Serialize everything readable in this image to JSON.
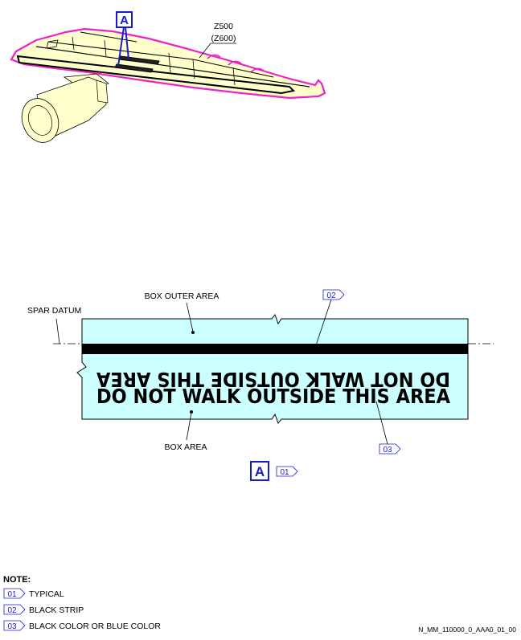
{
  "wing": {
    "zone_label": "Z500",
    "zone_sublabel": "(Z600)",
    "detail_callout": "A"
  },
  "detail": {
    "outer_area_label": "BOX OUTER AREA",
    "spar_datum_label": "SPAR DATUM",
    "box_area_label": "BOX AREA",
    "sign_text_mirrored": "DO NOT WALK OUTSIDE THIS AREA",
    "sign_text": "DO NOT WALK OUTSIDE THIS AREA",
    "strip_ref": "02",
    "text_ref": "03",
    "view_label": "A",
    "view_ref": "01"
  },
  "notes": {
    "title": "NOTE:",
    "items": [
      {
        "ref": "01",
        "text": "TYPICAL"
      },
      {
        "ref": "02",
        "text": "BLACK STRIP"
      },
      {
        "ref": "03",
        "text": "BLACK COLOR OR BLUE COLOR"
      }
    ]
  },
  "figure_id": "N_MM_110000_0_AAA0_01_00",
  "colors": {
    "box_fill": "#ccffff",
    "wing_fill": "#ffffcc",
    "wing_outline": "#ee22cc",
    "callout": "#1a1acc",
    "strip": "#000000"
  }
}
